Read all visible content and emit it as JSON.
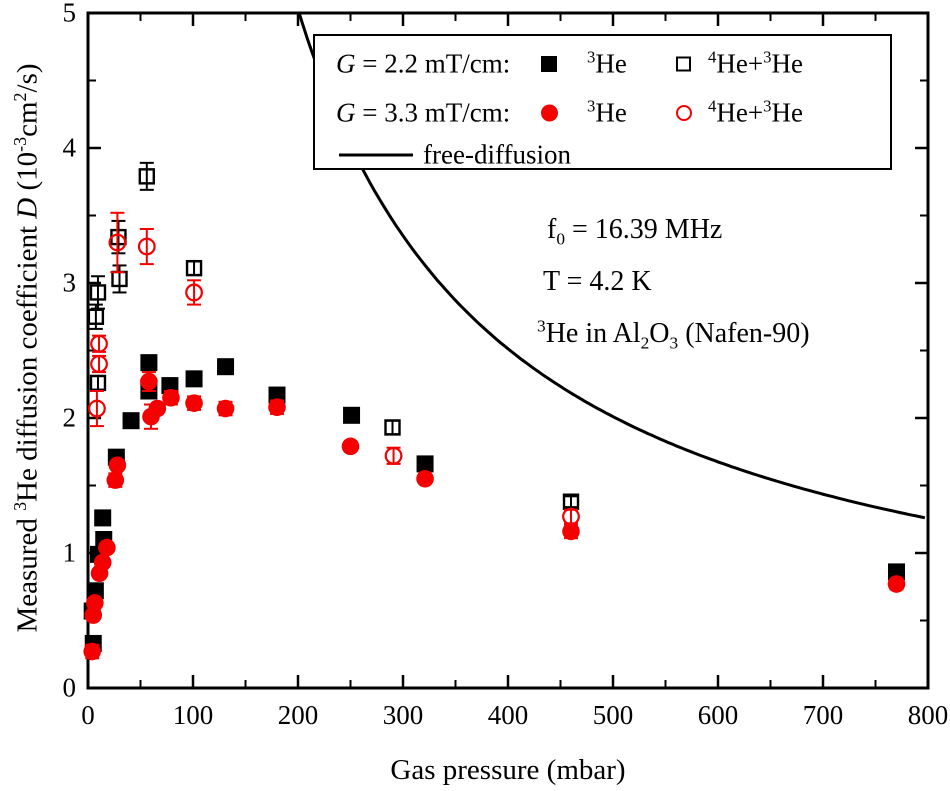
{
  "figure": {
    "background": "#ffffff",
    "colors": {
      "g22_series": "#000000",
      "g33_series": "#f40000",
      "curve": "#000000",
      "frame": "#000000"
    },
    "legend": {
      "rows": [
        {
          "label": [
            {
              "t": "G",
              "i": 1
            },
            {
              "t": " = 2.2 mT/cm:"
            }
          ],
          "entries": [
            {
              "marker": "filled-square",
              "color": "#000000",
              "text": [
                {
                  "t": "3",
                  "sup": 1
                },
                {
                  "t": "He"
                }
              ]
            },
            {
              "marker": "open-square",
              "color": "#000000",
              "text": [
                {
                  "t": "4",
                  "sup": 1
                },
                {
                  "t": "He+"
                },
                {
                  "t": "3",
                  "sup": 1
                },
                {
                  "t": "He"
                }
              ]
            }
          ]
        },
        {
          "label": [
            {
              "t": "G",
              "i": 1
            },
            {
              "t": " = 3.3 mT/cm:"
            }
          ],
          "entries": [
            {
              "marker": "filled-circle",
              "color": "#f40000",
              "text": [
                {
                  "t": "3",
                  "sup": 1
                },
                {
                  "t": "He"
                }
              ]
            },
            {
              "marker": "open-circle",
              "color": "#f40000",
              "text": [
                {
                  "t": "4",
                  "sup": 1
                },
                {
                  "t": "He+"
                },
                {
                  "t": "3",
                  "sup": 1
                },
                {
                  "t": "He"
                }
              ]
            }
          ]
        },
        {
          "label": [],
          "entries": [
            {
              "marker": "line",
              "color": "#000000",
              "text": [
                {
                  "t": "free-diffusion"
                }
              ]
            }
          ]
        }
      ]
    },
    "annotations": [
      {
        "plain": "f0 = 16.39 MHz",
        "segments": [
          {
            "t": "f"
          },
          {
            "t": "0",
            "sub": 1
          },
          {
            "t": " = 16.39 MHz"
          }
        ]
      },
      {
        "plain": "T = 4.2 K",
        "segments": [
          {
            "t": "T = 4.2 K"
          }
        ]
      },
      {
        "plain": "3He in Al2O3 (Nafen-90)",
        "segments": [
          {
            "t": "3",
            "sup": 1
          },
          {
            "t": "He in Al"
          },
          {
            "t": "2",
            "sub": 1
          },
          {
            "t": "O"
          },
          {
            "t": "3",
            "sub": 1
          },
          {
            "t": " (Nafen-90)"
          }
        ]
      }
    ]
  },
  "chart_data": {
    "type": "scatter",
    "title": "",
    "xlabel": "Gas pressure (mbar)",
    "ylabel": "Measured 3He diffusion coefficient D (10-3 cm2/s)",
    "ylabel_segments": [
      {
        "t": "Measured "
      },
      {
        "t": "3",
        "sup": 1
      },
      {
        "t": "He diffusion coefficient "
      },
      {
        "t": "D",
        "i": 1
      },
      {
        "t": " (10"
      },
      {
        "t": "-3",
        "sup": 1
      },
      {
        "t": "cm"
      },
      {
        "t": "2",
        "sup": 1
      },
      {
        "t": "/s)"
      }
    ],
    "x_axis": {
      "min": 0,
      "max": 800,
      "major": 100,
      "minor": 50,
      "tick_labels": [
        "0",
        "100",
        "200",
        "300",
        "400",
        "500",
        "600",
        "700",
        "800"
      ]
    },
    "y_axis": {
      "min": 0,
      "max": 5,
      "major": 1,
      "minor": 0.5,
      "tick_labels": [
        "0",
        "1",
        "2",
        "3",
        "4",
        "5"
      ]
    },
    "grid": false,
    "legend_position": "top-center-inside",
    "series": [
      {
        "name": "G = 2.2 mT/cm, 3He",
        "marker": "filled-square",
        "color": "#000000",
        "points": [
          [
            5,
            0.33,
            0.04
          ],
          [
            4,
            0.57,
            0
          ],
          [
            7,
            0.72,
            0
          ],
          [
            10,
            0.99,
            0
          ],
          [
            15,
            1.1,
            0
          ],
          [
            14,
            1.26,
            0
          ],
          [
            27,
            1.71,
            0
          ],
          [
            41,
            1.98,
            0
          ],
          [
            58,
            2.41,
            0.05
          ],
          [
            58,
            2.2,
            0.05
          ],
          [
            78,
            2.24,
            0
          ],
          [
            101,
            2.29,
            0
          ],
          [
            131,
            2.38,
            0
          ],
          [
            180,
            2.17,
            0.05
          ],
          [
            251,
            2.02,
            0
          ],
          [
            321,
            1.66,
            0
          ],
          [
            770,
            0.86,
            0.05
          ]
        ]
      },
      {
        "name": "G = 3.3 mT/cm, 3He",
        "marker": "filled-circle",
        "color": "#f40000",
        "points": [
          [
            4,
            0.27,
            0.05
          ],
          [
            5,
            0.54,
            0
          ],
          [
            6.5,
            0.63,
            0
          ],
          [
            11,
            0.85,
            0
          ],
          [
            14,
            0.93,
            0
          ],
          [
            18,
            1.04,
            0
          ],
          [
            26,
            1.54,
            0.05
          ],
          [
            28,
            1.65,
            0
          ],
          [
            58,
            2.27,
            0.07
          ],
          [
            60,
            2.01,
            0.09
          ],
          [
            66,
            2.07,
            0
          ],
          [
            79,
            2.15,
            0.05
          ],
          [
            101,
            2.11,
            0.05
          ],
          [
            131,
            2.07,
            0.05
          ],
          [
            180,
            2.08,
            0.05
          ],
          [
            250,
            1.79,
            0
          ],
          [
            321,
            1.55,
            0
          ],
          [
            460,
            1.16,
            0.05
          ],
          [
            770,
            0.77,
            0.04
          ]
        ]
      },
      {
        "name": "G = 2.2 mT/cm, 4He+3He",
        "marker": "open-square",
        "color": "#000000",
        "points": [
          [
            7.5,
            2.75,
            0.09
          ],
          [
            9.5,
            2.93,
            0.12
          ],
          [
            9.5,
            2.26,
            0.05
          ],
          [
            29,
            3.34,
            0.12
          ],
          [
            30,
            3.03,
            0.1
          ],
          [
            56,
            3.79,
            0.1
          ],
          [
            101,
            3.11,
            0.05
          ],
          [
            290,
            1.93,
            0.05
          ],
          [
            460,
            1.38,
            0.04
          ]
        ]
      },
      {
        "name": "G = 3.3 mT/cm, 4He+3He",
        "marker": "open-circle",
        "color": "#f40000",
        "points": [
          [
            8.5,
            2.07,
            0.13
          ],
          [
            10.5,
            2.4,
            0.06
          ],
          [
            10.5,
            2.55,
            0.06
          ],
          [
            28,
            3.3,
            0.22
          ],
          [
            56,
            3.27,
            0.13
          ],
          [
            101,
            2.93,
            0.09
          ],
          [
            291,
            1.72,
            0.06
          ],
          [
            460,
            1.27,
            0.05
          ]
        ]
      }
    ],
    "curve": {
      "name": "free-diffusion",
      "formula": "D = k / p",
      "k": 1005,
      "p_start": 201,
      "p_end": 800,
      "sample_points": [
        [
          201,
          5.0
        ],
        [
          250,
          4.02
        ],
        [
          300,
          3.35
        ],
        [
          400,
          2.51
        ],
        [
          500,
          2.01
        ],
        [
          600,
          1.68
        ],
        [
          700,
          1.44
        ],
        [
          800,
          1.26
        ]
      ]
    }
  }
}
